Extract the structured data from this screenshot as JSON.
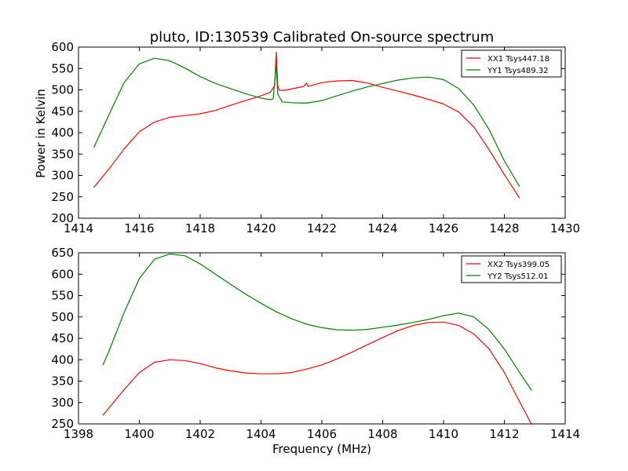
{
  "figure": {
    "title": "pluto, ID:130539 Calibrated On-source spectrum",
    "ylabel": "Power in Kelvin",
    "xlabel": "Frequency (MHz)"
  },
  "chart_data": [
    {
      "type": "line",
      "title": "pluto, ID:130539 Calibrated On-source spectrum",
      "xlabel": "",
      "ylabel": "Power in Kelvin",
      "xlim": [
        1414,
        1430
      ],
      "ylim": [
        200,
        600
      ],
      "xticks": [
        1414,
        1416,
        1418,
        1420,
        1422,
        1424,
        1426,
        1428,
        1430
      ],
      "yticks": [
        200,
        250,
        300,
        350,
        400,
        450,
        500,
        550,
        600
      ],
      "grid": false,
      "legend_position": "top-right",
      "series": [
        {
          "name": "XX1 Tsys447.18",
          "color": "#ff0000",
          "points": [
            [
              1414.5,
              272
            ],
            [
              1415.0,
              315
            ],
            [
              1415.5,
              362
            ],
            [
              1416.0,
              402
            ],
            [
              1416.5,
              425
            ],
            [
              1417.0,
              436
            ],
            [
              1417.5,
              440
            ],
            [
              1418.0,
              444
            ],
            [
              1418.5,
              452
            ],
            [
              1419.0,
              464
            ],
            [
              1419.5,
              475
            ],
            [
              1420.0,
              486
            ],
            [
              1420.3,
              494
            ],
            [
              1420.45,
              510
            ],
            [
              1420.5,
              588
            ],
            [
              1420.55,
              510
            ],
            [
              1420.6,
              499
            ],
            [
              1420.8,
              499
            ],
            [
              1421.0,
              502
            ],
            [
              1421.4,
              508
            ],
            [
              1421.5,
              516
            ],
            [
              1421.55,
              508
            ],
            [
              1422.0,
              517
            ],
            [
              1422.5,
              521
            ],
            [
              1423.0,
              522
            ],
            [
              1423.5,
              516
            ],
            [
              1424.0,
              506
            ],
            [
              1424.5,
              497
            ],
            [
              1425.0,
              488
            ],
            [
              1425.5,
              478
            ],
            [
              1426.0,
              467
            ],
            [
              1426.5,
              448
            ],
            [
              1427.0,
              413
            ],
            [
              1427.5,
              360
            ],
            [
              1428.0,
              302
            ],
            [
              1428.5,
              247
            ]
          ]
        },
        {
          "name": "YY1 Tsys489.32",
          "color": "#008000",
          "points": [
            [
              1414.5,
              365
            ],
            [
              1415.0,
              442
            ],
            [
              1415.5,
              517
            ],
            [
              1416.0,
              561
            ],
            [
              1416.5,
              574
            ],
            [
              1417.0,
              568
            ],
            [
              1417.5,
              551
            ],
            [
              1418.0,
              531
            ],
            [
              1418.5,
              515
            ],
            [
              1419.0,
              503
            ],
            [
              1419.5,
              491
            ],
            [
              1420.0,
              481
            ],
            [
              1420.3,
              477
            ],
            [
              1420.4,
              479
            ],
            [
              1420.5,
              560
            ],
            [
              1420.55,
              490
            ],
            [
              1420.7,
              472
            ],
            [
              1421.0,
              470
            ],
            [
              1421.5,
              469
            ],
            [
              1422.0,
              475
            ],
            [
              1422.5,
              486
            ],
            [
              1423.0,
              497
            ],
            [
              1423.5,
              507
            ],
            [
              1424.0,
              515
            ],
            [
              1424.5,
              523
            ],
            [
              1425.0,
              528
            ],
            [
              1425.5,
              530
            ],
            [
              1426.0,
              524
            ],
            [
              1426.5,
              503
            ],
            [
              1427.0,
              464
            ],
            [
              1427.5,
              407
            ],
            [
              1428.0,
              334
            ],
            [
              1428.5,
              274
            ]
          ]
        }
      ]
    },
    {
      "type": "line",
      "title": "",
      "xlabel": "Frequency (MHz)",
      "ylabel": "",
      "xlim": [
        1398,
        1414
      ],
      "ylim": [
        250,
        650
      ],
      "xticks": [
        1398,
        1400,
        1402,
        1404,
        1406,
        1408,
        1410,
        1412,
        1414
      ],
      "yticks": [
        250,
        300,
        350,
        400,
        450,
        500,
        550,
        600,
        650
      ],
      "grid": false,
      "legend_position": "top-right",
      "series": [
        {
          "name": "XX2 Tsys399.05",
          "color": "#ff0000",
          "points": [
            [
              1398.8,
              270
            ],
            [
              1399.5,
              330
            ],
            [
              1400.0,
              370
            ],
            [
              1400.5,
              394
            ],
            [
              1401.0,
              400
            ],
            [
              1401.5,
              398
            ],
            [
              1402.0,
              391
            ],
            [
              1402.5,
              381
            ],
            [
              1403.0,
              374
            ],
            [
              1403.5,
              369
            ],
            [
              1404.0,
              367
            ],
            [
              1404.5,
              367
            ],
            [
              1405.0,
              370
            ],
            [
              1405.5,
              378
            ],
            [
              1406.0,
              388
            ],
            [
              1406.5,
              402
            ],
            [
              1407.0,
              418
            ],
            [
              1407.5,
              435
            ],
            [
              1408.0,
              452
            ],
            [
              1408.5,
              468
            ],
            [
              1409.0,
              480
            ],
            [
              1409.5,
              487
            ],
            [
              1410.0,
              488
            ],
            [
              1410.5,
              480
            ],
            [
              1411.0,
              460
            ],
            [
              1411.5,
              425
            ],
            [
              1412.0,
              370
            ],
            [
              1412.5,
              302
            ],
            [
              1412.9,
              248
            ]
          ]
        },
        {
          "name": "YY2 Tsys512.01",
          "color": "#008000",
          "points": [
            [
              1398.8,
              387
            ],
            [
              1399.0,
              420
            ],
            [
              1399.5,
              510
            ],
            [
              1400.0,
              590
            ],
            [
              1400.5,
              635
            ],
            [
              1401.0,
              647
            ],
            [
              1401.5,
              643
            ],
            [
              1402.0,
              624
            ],
            [
              1402.5,
              600
            ],
            [
              1403.0,
              576
            ],
            [
              1403.5,
              553
            ],
            [
              1404.0,
              532
            ],
            [
              1404.5,
              512
            ],
            [
              1405.0,
              496
            ],
            [
              1405.5,
              483
            ],
            [
              1406.0,
              475
            ],
            [
              1406.5,
              470
            ],
            [
              1407.0,
              469
            ],
            [
              1407.5,
              471
            ],
            [
              1408.0,
              476
            ],
            [
              1408.5,
              481
            ],
            [
              1409.0,
              487
            ],
            [
              1409.5,
              494
            ],
            [
              1410.0,
              503
            ],
            [
              1410.5,
              509
            ],
            [
              1411.0,
              500
            ],
            [
              1411.5,
              470
            ],
            [
              1412.0,
              425
            ],
            [
              1412.5,
              370
            ],
            [
              1412.9,
              328
            ]
          ]
        }
      ]
    }
  ]
}
